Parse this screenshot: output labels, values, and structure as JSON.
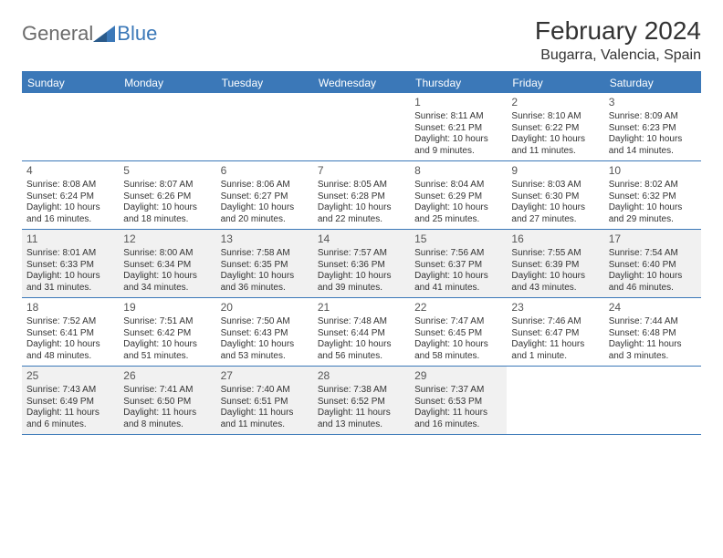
{
  "brand": {
    "general": "General",
    "blue": "Blue"
  },
  "title": "February 2024",
  "location": "Bugarra, Valencia, Spain",
  "colors": {
    "accent": "#3b78b8",
    "shaded": "#f1f1f1",
    "text": "#333333",
    "muted": "#6b6b6b",
    "background": "#ffffff"
  },
  "typography": {
    "title_fontsize": 28,
    "location_fontsize": 16,
    "dayheader_fontsize": 12,
    "daynum_fontsize": 12,
    "cell_fontsize": 10
  },
  "day_labels": [
    "Sunday",
    "Monday",
    "Tuesday",
    "Wednesday",
    "Thursday",
    "Friday",
    "Saturday"
  ],
  "weeks": [
    [
      {
        "empty": true
      },
      {
        "empty": true
      },
      {
        "empty": true
      },
      {
        "empty": true
      },
      {
        "n": "1",
        "sunrise": "Sunrise: 8:11 AM",
        "sunset": "Sunset: 6:21 PM",
        "d1": "Daylight: 10 hours",
        "d2": "and 9 minutes."
      },
      {
        "n": "2",
        "sunrise": "Sunrise: 8:10 AM",
        "sunset": "Sunset: 6:22 PM",
        "d1": "Daylight: 10 hours",
        "d2": "and 11 minutes."
      },
      {
        "n": "3",
        "sunrise": "Sunrise: 8:09 AM",
        "sunset": "Sunset: 6:23 PM",
        "d1": "Daylight: 10 hours",
        "d2": "and 14 minutes."
      }
    ],
    [
      {
        "n": "4",
        "sunrise": "Sunrise: 8:08 AM",
        "sunset": "Sunset: 6:24 PM",
        "d1": "Daylight: 10 hours",
        "d2": "and 16 minutes."
      },
      {
        "n": "5",
        "sunrise": "Sunrise: 8:07 AM",
        "sunset": "Sunset: 6:26 PM",
        "d1": "Daylight: 10 hours",
        "d2": "and 18 minutes."
      },
      {
        "n": "6",
        "sunrise": "Sunrise: 8:06 AM",
        "sunset": "Sunset: 6:27 PM",
        "d1": "Daylight: 10 hours",
        "d2": "and 20 minutes."
      },
      {
        "n": "7",
        "sunrise": "Sunrise: 8:05 AM",
        "sunset": "Sunset: 6:28 PM",
        "d1": "Daylight: 10 hours",
        "d2": "and 22 minutes."
      },
      {
        "n": "8",
        "sunrise": "Sunrise: 8:04 AM",
        "sunset": "Sunset: 6:29 PM",
        "d1": "Daylight: 10 hours",
        "d2": "and 25 minutes."
      },
      {
        "n": "9",
        "sunrise": "Sunrise: 8:03 AM",
        "sunset": "Sunset: 6:30 PM",
        "d1": "Daylight: 10 hours",
        "d2": "and 27 minutes."
      },
      {
        "n": "10",
        "sunrise": "Sunrise: 8:02 AM",
        "sunset": "Sunset: 6:32 PM",
        "d1": "Daylight: 10 hours",
        "d2": "and 29 minutes."
      }
    ],
    [
      {
        "n": "11",
        "s": true,
        "sunrise": "Sunrise: 8:01 AM",
        "sunset": "Sunset: 6:33 PM",
        "d1": "Daylight: 10 hours",
        "d2": "and 31 minutes."
      },
      {
        "n": "12",
        "s": true,
        "sunrise": "Sunrise: 8:00 AM",
        "sunset": "Sunset: 6:34 PM",
        "d1": "Daylight: 10 hours",
        "d2": "and 34 minutes."
      },
      {
        "n": "13",
        "s": true,
        "sunrise": "Sunrise: 7:58 AM",
        "sunset": "Sunset: 6:35 PM",
        "d1": "Daylight: 10 hours",
        "d2": "and 36 minutes."
      },
      {
        "n": "14",
        "s": true,
        "sunrise": "Sunrise: 7:57 AM",
        "sunset": "Sunset: 6:36 PM",
        "d1": "Daylight: 10 hours",
        "d2": "and 39 minutes."
      },
      {
        "n": "15",
        "s": true,
        "sunrise": "Sunrise: 7:56 AM",
        "sunset": "Sunset: 6:37 PM",
        "d1": "Daylight: 10 hours",
        "d2": "and 41 minutes."
      },
      {
        "n": "16",
        "s": true,
        "sunrise": "Sunrise: 7:55 AM",
        "sunset": "Sunset: 6:39 PM",
        "d1": "Daylight: 10 hours",
        "d2": "and 43 minutes."
      },
      {
        "n": "17",
        "s": true,
        "sunrise": "Sunrise: 7:54 AM",
        "sunset": "Sunset: 6:40 PM",
        "d1": "Daylight: 10 hours",
        "d2": "and 46 minutes."
      }
    ],
    [
      {
        "n": "18",
        "sunrise": "Sunrise: 7:52 AM",
        "sunset": "Sunset: 6:41 PM",
        "d1": "Daylight: 10 hours",
        "d2": "and 48 minutes."
      },
      {
        "n": "19",
        "sunrise": "Sunrise: 7:51 AM",
        "sunset": "Sunset: 6:42 PM",
        "d1": "Daylight: 10 hours",
        "d2": "and 51 minutes."
      },
      {
        "n": "20",
        "sunrise": "Sunrise: 7:50 AM",
        "sunset": "Sunset: 6:43 PM",
        "d1": "Daylight: 10 hours",
        "d2": "and 53 minutes."
      },
      {
        "n": "21",
        "sunrise": "Sunrise: 7:48 AM",
        "sunset": "Sunset: 6:44 PM",
        "d1": "Daylight: 10 hours",
        "d2": "and 56 minutes."
      },
      {
        "n": "22",
        "sunrise": "Sunrise: 7:47 AM",
        "sunset": "Sunset: 6:45 PM",
        "d1": "Daylight: 10 hours",
        "d2": "and 58 minutes."
      },
      {
        "n": "23",
        "sunrise": "Sunrise: 7:46 AM",
        "sunset": "Sunset: 6:47 PM",
        "d1": "Daylight: 11 hours",
        "d2": "and 1 minute."
      },
      {
        "n": "24",
        "sunrise": "Sunrise: 7:44 AM",
        "sunset": "Sunset: 6:48 PM",
        "d1": "Daylight: 11 hours",
        "d2": "and 3 minutes."
      }
    ],
    [
      {
        "n": "25",
        "s": true,
        "sunrise": "Sunrise: 7:43 AM",
        "sunset": "Sunset: 6:49 PM",
        "d1": "Daylight: 11 hours",
        "d2": "and 6 minutes."
      },
      {
        "n": "26",
        "s": true,
        "sunrise": "Sunrise: 7:41 AM",
        "sunset": "Sunset: 6:50 PM",
        "d1": "Daylight: 11 hours",
        "d2": "and 8 minutes."
      },
      {
        "n": "27",
        "s": true,
        "sunrise": "Sunrise: 7:40 AM",
        "sunset": "Sunset: 6:51 PM",
        "d1": "Daylight: 11 hours",
        "d2": "and 11 minutes."
      },
      {
        "n": "28",
        "s": true,
        "sunrise": "Sunrise: 7:38 AM",
        "sunset": "Sunset: 6:52 PM",
        "d1": "Daylight: 11 hours",
        "d2": "and 13 minutes."
      },
      {
        "n": "29",
        "s": true,
        "sunrise": "Sunrise: 7:37 AM",
        "sunset": "Sunset: 6:53 PM",
        "d1": "Daylight: 11 hours",
        "d2": "and 16 minutes."
      },
      {
        "empty": true
      },
      {
        "empty": true
      }
    ]
  ]
}
